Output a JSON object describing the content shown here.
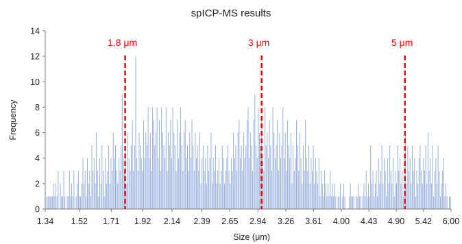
{
  "chart_data": {
    "type": "bar",
    "title": "spICP-MS results",
    "xlabel": "Size (μm)",
    "ylabel": "Frequency",
    "ylim": [
      0,
      14
    ],
    "y_ticks": [
      0,
      2,
      4,
      6,
      8,
      10,
      12,
      14
    ],
    "x_tick_labels": [
      "1.34",
      "1.52",
      "1.71",
      "1.92",
      "2.14",
      "2.39",
      "2.65",
      "2.94",
      "3.26",
      "3.61",
      "4.00",
      "4.43",
      "4.90",
      "5.42",
      "6.00"
    ],
    "x_scale": "log",
    "grid": false,
    "bar_color": "#8faadc",
    "marker_color": "#ff0000",
    "markers": [
      {
        "label": "1.8 μm",
        "x": 1.8
      },
      {
        "label": "3 μm",
        "x": 2.98
      },
      {
        "label": "5 μm",
        "x": 5.06
      }
    ],
    "series": [
      {
        "values": [
          0,
          1,
          1,
          1,
          1,
          1,
          1,
          2,
          1,
          2,
          1,
          3,
          0,
          2,
          1,
          1,
          3,
          1,
          0,
          1,
          1,
          3,
          1,
          2,
          1,
          3,
          0,
          1,
          2,
          3,
          1,
          1,
          2,
          4,
          2,
          3,
          1,
          4,
          2,
          3,
          1,
          5,
          3,
          4,
          2,
          6,
          3,
          1,
          4,
          2,
          5,
          3,
          1,
          4,
          2,
          3,
          5,
          2,
          4,
          3,
          6,
          4,
          5,
          3,
          2,
          4,
          3,
          5,
          9,
          4,
          3,
          5,
          2,
          6,
          4,
          3,
          5,
          7,
          3,
          5,
          12,
          4,
          3,
          6,
          5,
          4,
          3,
          7,
          4,
          6,
          5,
          8,
          4,
          6,
          3,
          8,
          7,
          5,
          6,
          8,
          4,
          7,
          3,
          8,
          6,
          5,
          4,
          8,
          3,
          6,
          5,
          7,
          4,
          8,
          6,
          5,
          3,
          7,
          4,
          6,
          8,
          5,
          3,
          6,
          7,
          4,
          5,
          3,
          6,
          4,
          7,
          5,
          3,
          6,
          4,
          5,
          3,
          6,
          2,
          4,
          5,
          3,
          4,
          2,
          5,
          3,
          4,
          6,
          2,
          4,
          3,
          5,
          2,
          3,
          4,
          2,
          3,
          5,
          4,
          2,
          3,
          4,
          5,
          3,
          2,
          4,
          3,
          6,
          4,
          5,
          3,
          6,
          7,
          4,
          5,
          3,
          6,
          4,
          5,
          7,
          8,
          4,
          6,
          5,
          3,
          7,
          9,
          5,
          4,
          8,
          6,
          5,
          7,
          4,
          3,
          8,
          5,
          6,
          4,
          7,
          5,
          3,
          8,
          6,
          4,
          5,
          7,
          3,
          6,
          4,
          5,
          8,
          4,
          6,
          3,
          7,
          5,
          4,
          6,
          2,
          5,
          3,
          4,
          7,
          5,
          3,
          6,
          4,
          2,
          5,
          3,
          7,
          4,
          3,
          5,
          2,
          4,
          3,
          5,
          2,
          4,
          3,
          2,
          4,
          1,
          3,
          2,
          1,
          3,
          2,
          1,
          2,
          1,
          3,
          1,
          2,
          1,
          2,
          1,
          0,
          1,
          1,
          2,
          0,
          1,
          2,
          1,
          0,
          0,
          0,
          1,
          2,
          1,
          1,
          1,
          0,
          1,
          1,
          2,
          1,
          1,
          0,
          1,
          2,
          1,
          3,
          1,
          2,
          1,
          5,
          2,
          3,
          1,
          2,
          3,
          1,
          4,
          2,
          3,
          5,
          2,
          4,
          3,
          1,
          4,
          2,
          5,
          3,
          2,
          4,
          1,
          3,
          2,
          5,
          3,
          4,
          2,
          3,
          1,
          4,
          6,
          2,
          5,
          3,
          4,
          2,
          5,
          3,
          4,
          1,
          3,
          2,
          4,
          5,
          3,
          2,
          4,
          3,
          5,
          2,
          6,
          3,
          4,
          2,
          5,
          1,
          3,
          4,
          2,
          5,
          3,
          1,
          2,
          3,
          4,
          1,
          2,
          1,
          0,
          1,
          1
        ]
      }
    ]
  }
}
